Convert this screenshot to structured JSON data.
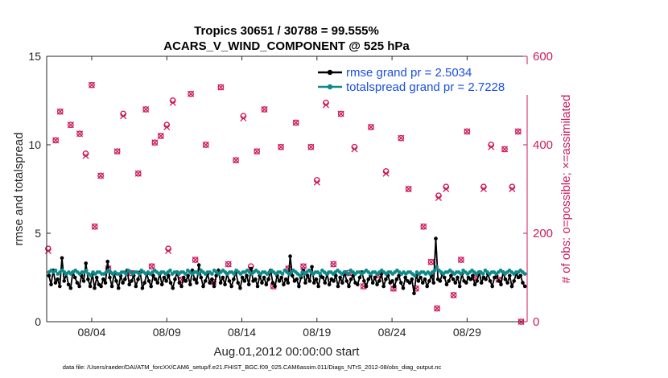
{
  "chart_data": {
    "type": "line",
    "title": "Tropics 30651 / 30788 = 99.555%",
    "subtitle": "ACARS_V_WIND_COMPONENT @ 525 hPa",
    "xlabel": "Aug.01,2012 00:00:00 start",
    "ylabel": "rmse and totalspread",
    "ylabel_right": "# of obs: o=possible; ×=assimilated",
    "footer": "data file: /Users/raeder/DAI/ATM_forcXX/CAM6_setup/f.e21.FHIST_BGC.f09_025.CAM6assim.011/Diags_NTrS_2012-08/obs_diag_output.nc",
    "xlim": [
      1,
      33
    ],
    "ylim": [
      0,
      15
    ],
    "ylim_right": [
      0,
      600
    ],
    "x_ticks": [
      4,
      9,
      14,
      19,
      24,
      29
    ],
    "x_tick_labels": [
      "08/04",
      "08/09",
      "08/14",
      "08/19",
      "08/24",
      "08/29"
    ],
    "y_ticks": [
      0,
      5,
      10,
      15
    ],
    "y_tick_labels": [
      "0",
      "5",
      "10",
      "15"
    ],
    "y_right_ticks": [
      0,
      200,
      400,
      600
    ],
    "y_right_tick_labels": [
      "0",
      "200",
      "400",
      "600"
    ],
    "legend_location": "top-right",
    "colors": {
      "rmse": "#000000",
      "spread": "#0f8a8a",
      "obs": "#cc1a5c",
      "axis": "#262626"
    },
    "series": [
      {
        "name": "rmse grand pr = 2.5034",
        "axis": "left",
        "values": [
          2.6,
          2.1,
          2.9,
          2.2,
          2.4,
          2.0,
          3.6,
          2.3,
          2.7,
          2.1,
          1.9,
          2.8,
          2.5,
          2.2,
          2.0,
          2.6,
          2.3,
          3.3,
          2.4,
          2.0,
          2.7,
          1.9,
          2.5,
          2.1,
          2.0,
          2.4,
          2.2,
          3.4,
          2.5,
          2.0,
          2.7,
          2.3,
          1.9,
          2.6,
          2.2,
          2.4,
          2.9,
          2.1,
          2.3,
          2.6,
          2.0,
          2.4,
          2.8,
          1.9,
          2.2,
          2.7,
          2.3,
          2.0,
          2.6,
          2.4,
          2.2,
          2.7,
          2.1,
          2.5,
          2.3,
          2.6,
          2.2,
          1.9,
          2.4,
          2.8,
          2.2,
          2.0,
          2.5,
          2.3,
          2.6,
          2.1,
          2.9,
          2.4,
          2.2,
          3.2,
          2.5,
          2.0,
          2.3,
          2.7,
          2.2,
          2.4,
          2.0,
          2.6,
          2.9,
          2.2,
          2.5,
          2.1,
          2.7,
          2.3,
          2.0,
          2.4,
          2.8,
          2.2,
          1.9,
          2.5,
          2.3,
          2.6,
          2.1,
          3.0,
          2.3,
          2.4,
          2.0,
          2.6,
          2.2,
          2.5,
          2.1,
          2.4,
          2.9,
          2.2,
          2.0,
          2.6,
          2.3,
          2.5,
          2.1,
          2.4,
          2.2,
          3.7,
          2.6,
          2.3,
          2.4,
          2.0,
          2.5,
          2.9,
          2.2,
          2.6,
          2.3,
          3.1,
          2.2,
          2.4,
          2.0,
          2.6,
          2.5,
          2.2,
          2.7,
          2.1,
          2.4,
          2.3,
          2.6,
          2.0,
          2.5,
          2.2,
          2.8,
          2.3,
          2.0,
          2.4,
          2.6,
          2.2,
          2.1,
          2.5,
          2.8,
          2.3,
          2.0,
          2.4,
          2.6,
          2.2,
          2.5,
          2.1,
          2.3,
          2.7,
          2.0,
          2.4,
          2.6,
          2.2,
          2.3,
          2.0,
          2.4,
          2.6,
          2.2,
          1.9,
          2.5,
          2.3,
          2.2,
          2.4,
          1.6,
          2.6,
          2.3,
          2.5,
          2.2,
          2.4,
          2.0,
          2.3,
          2.6,
          2.2,
          4.7,
          2.4,
          2.3,
          2.7,
          2.5,
          2.1,
          2.3,
          2.6,
          2.4,
          2.2,
          2.5,
          2.0,
          2.7,
          2.3,
          2.2,
          2.5,
          2.4,
          2.6,
          2.1,
          2.3,
          2.8,
          2.2,
          2.5,
          2.4,
          2.7,
          2.3,
          2.0,
          2.5,
          2.6,
          2.3,
          2.1,
          2.8,
          2.4,
          2.2,
          2.6,
          2.0,
          2.3,
          2.7,
          2.5,
          2.6,
          2.2,
          2.0
        ]
      },
      {
        "name": "totalspread grand pr = 2.7228",
        "axis": "left",
        "values": [
          2.8,
          2.9,
          2.8,
          2.9,
          2.7,
          2.8,
          2.9,
          2.8,
          2.7,
          2.8,
          2.7,
          2.8,
          2.9,
          2.8,
          2.7,
          2.8,
          2.8,
          2.9,
          2.7,
          2.6,
          2.8,
          2.7,
          2.8,
          2.8,
          2.7,
          2.7,
          2.8,
          2.9,
          2.8,
          2.7,
          2.8,
          2.7,
          2.7,
          2.8,
          2.8,
          2.7,
          2.9,
          2.8,
          2.7,
          2.8,
          2.8,
          2.7,
          2.9,
          2.8,
          2.7,
          2.8,
          2.7,
          2.8,
          2.9,
          2.8,
          2.7,
          2.8,
          2.8,
          2.7,
          2.8,
          2.9,
          2.7,
          2.8,
          2.8,
          2.7,
          2.8,
          2.8,
          2.7,
          2.9,
          2.8,
          2.7,
          2.8,
          2.8,
          2.7,
          2.9,
          2.8,
          2.7,
          2.8,
          2.8,
          2.7,
          2.9,
          2.8,
          2.7,
          2.8,
          2.9,
          2.8,
          2.7,
          2.8,
          2.8,
          2.7,
          2.9,
          2.8,
          2.7,
          2.8,
          2.8,
          2.9,
          2.8,
          2.7,
          2.8,
          2.9,
          2.8,
          2.7,
          2.8,
          2.8,
          2.7,
          2.8,
          2.9,
          2.8,
          2.7,
          2.8,
          2.8,
          2.7,
          2.9,
          2.8,
          2.7,
          2.8,
          2.9,
          2.8,
          2.7,
          2.6,
          2.8,
          2.7,
          2.8,
          2.9,
          2.8,
          2.7,
          2.8,
          2.8,
          2.7,
          2.9,
          2.8,
          2.7,
          2.8,
          2.8,
          2.7,
          2.8,
          2.9,
          2.8,
          2.7,
          2.8,
          2.8,
          2.7,
          2.9,
          2.8,
          2.7,
          2.8,
          2.8,
          2.7,
          2.8,
          2.9,
          2.8,
          2.7,
          2.8,
          2.8,
          2.7,
          2.8,
          2.9,
          2.8,
          2.7,
          2.8,
          2.8,
          2.7,
          2.8,
          2.9,
          2.8,
          2.7,
          2.8,
          2.7,
          2.8,
          2.8,
          2.7,
          2.6,
          2.8,
          2.7,
          2.8,
          2.8,
          2.7,
          2.8,
          2.7,
          2.8,
          2.9,
          3.1,
          2.9,
          2.8,
          2.7,
          2.8,
          2.8,
          2.9,
          2.8,
          2.7,
          2.8,
          2.8,
          2.7,
          2.9,
          2.8,
          2.7,
          2.8,
          2.9,
          2.8,
          2.7,
          2.8,
          2.8,
          2.7,
          2.9,
          2.8,
          2.7,
          2.8,
          2.8,
          2.7,
          2.8,
          2.9,
          2.8,
          2.7,
          2.8,
          2.9,
          2.8,
          2.7,
          2.8,
          2.8,
          2.9,
          2.8,
          2.7
        ]
      },
      {
        "name": "# of obs possible",
        "axis": "right",
        "x": [
          1.1,
          1.6,
          1.9,
          2.6,
          3.2,
          3.6,
          4.0,
          4.2,
          4.6,
          5.1,
          5.7,
          6.1,
          6.6,
          7.1,
          7.6,
          8.0,
          8.2,
          8.6,
          9.0,
          9.1,
          9.4,
          10.0,
          10.6,
          10.9,
          11.6,
          12.1,
          12.6,
          13.1,
          13.6,
          14.1,
          14.6,
          15.0,
          15.5,
          16.1,
          16.6,
          17.1,
          17.6,
          18.1,
          18.6,
          19.0,
          19.6,
          20.1,
          20.6,
          21.1,
          21.5,
          22.1,
          22.6,
          23.1,
          23.6,
          24.1,
          24.6,
          25.1,
          25.6,
          26.1,
          26.6,
          27.0,
          27.1,
          27.6,
          28.1,
          28.6,
          29.0,
          29.5,
          30.1,
          30.6,
          31.1,
          31.5,
          32.0,
          32.4,
          32.6
        ],
        "values": [
          165,
          410,
          475,
          445,
          425,
          380,
          535,
          215,
          330,
          120,
          385,
          470,
          110,
          335,
          480,
          125,
          405,
          420,
          445,
          165,
          500,
          95,
          515,
          140,
          400,
          90,
          530,
          130,
          365,
          465,
          125,
          385,
          480,
          80,
          395,
          120,
          450,
          125,
          395,
          320,
          495,
          130,
          470,
          110,
          395,
          80,
          440,
          105,
          340,
          75,
          415,
          300,
          75,
          215,
          135,
          30,
          285,
          305,
          60,
          140,
          430,
          100,
          305,
          400,
          95,
          390,
          305,
          430,
          0
        ],
        "marker": "circle"
      },
      {
        "name": "# of obs assimilated",
        "axis": "right",
        "x": [
          1.1,
          1.6,
          1.9,
          2.6,
          3.2,
          3.6,
          4.0,
          4.2,
          4.6,
          5.1,
          5.7,
          6.1,
          6.6,
          7.1,
          7.6,
          8.0,
          8.2,
          8.6,
          9.0,
          9.1,
          9.4,
          10.0,
          10.6,
          10.9,
          11.6,
          12.1,
          12.6,
          13.1,
          13.6,
          14.1,
          14.6,
          15.0,
          15.5,
          16.1,
          16.6,
          17.1,
          17.6,
          18.1,
          18.6,
          19.0,
          19.6,
          20.1,
          20.6,
          21.1,
          21.5,
          22.1,
          22.6,
          23.1,
          23.6,
          24.1,
          24.6,
          25.1,
          25.6,
          26.1,
          26.6,
          27.0,
          27.1,
          27.6,
          28.1,
          28.6,
          29.0,
          29.5,
          30.1,
          30.6,
          31.1,
          31.5,
          32.0,
          32.4,
          32.6
        ],
        "values": [
          160,
          410,
          475,
          445,
          425,
          375,
          535,
          215,
          330,
          120,
          385,
          465,
          110,
          335,
          480,
          125,
          405,
          420,
          440,
          160,
          495,
          95,
          515,
          140,
          400,
          90,
          530,
          130,
          365,
          460,
          120,
          385,
          480,
          80,
          395,
          120,
          450,
          125,
          395,
          315,
          490,
          130,
          470,
          110,
          390,
          80,
          440,
          105,
          335,
          75,
          415,
          300,
          75,
          215,
          135,
          30,
          280,
          300,
          60,
          140,
          430,
          100,
          300,
          395,
          95,
          390,
          300,
          430,
          0
        ],
        "marker": "x"
      }
    ]
  }
}
